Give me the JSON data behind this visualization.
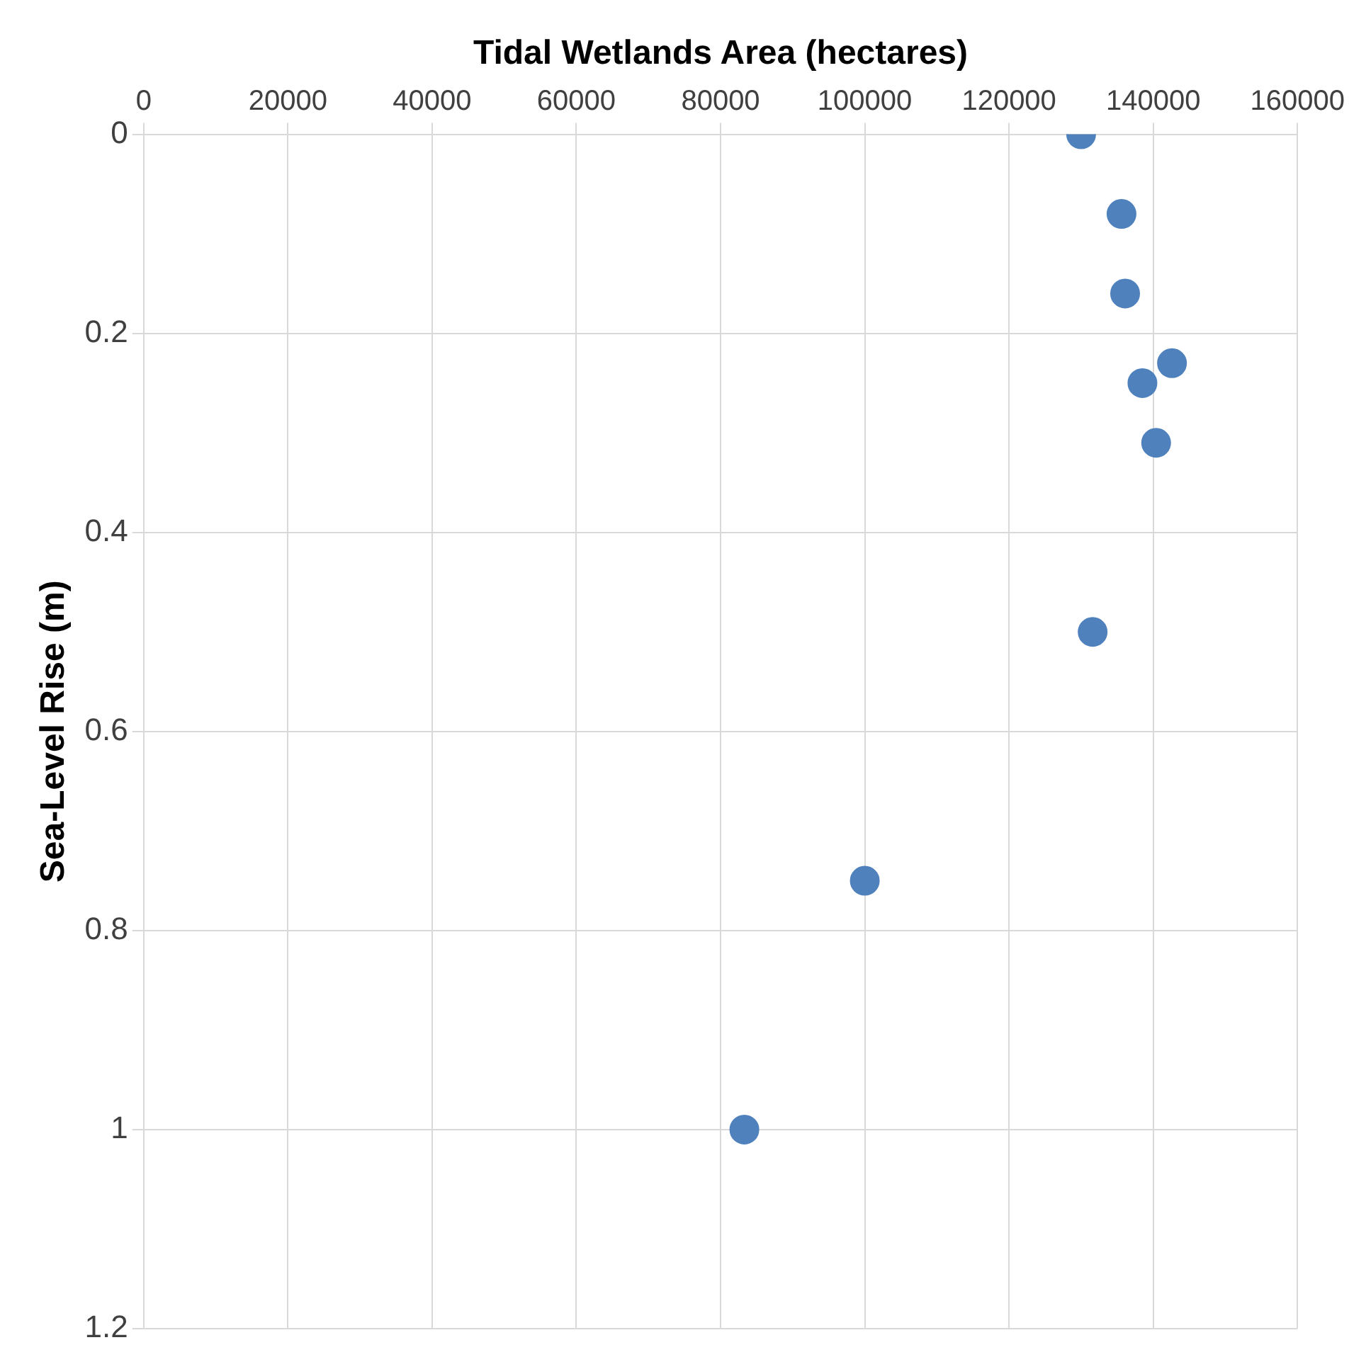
{
  "chart_data": {
    "type": "scatter",
    "xlabel": "Tidal Wetlands Area (hectares)",
    "ylabel": "Sea-Level Rise (m)",
    "x": [
      130000,
      135600,
      136100,
      142600,
      138500,
      140400,
      131600,
      100000,
      83300
    ],
    "values": [
      0,
      0.08,
      0.16,
      0.23,
      0.25,
      0.31,
      0.5,
      0.75,
      1.0
    ],
    "color": "#4f81bd",
    "xlim": [
      0,
      160000
    ],
    "xticks": [
      0,
      20000,
      40000,
      60000,
      80000,
      100000,
      120000,
      140000,
      160000
    ],
    "ylim": [
      1.2,
      0
    ],
    "yticks": [
      0,
      0.2,
      0.4,
      0.6,
      0.8,
      1,
      1.2
    ],
    "grid": true,
    "legend": false,
    "marker": "circle"
  }
}
